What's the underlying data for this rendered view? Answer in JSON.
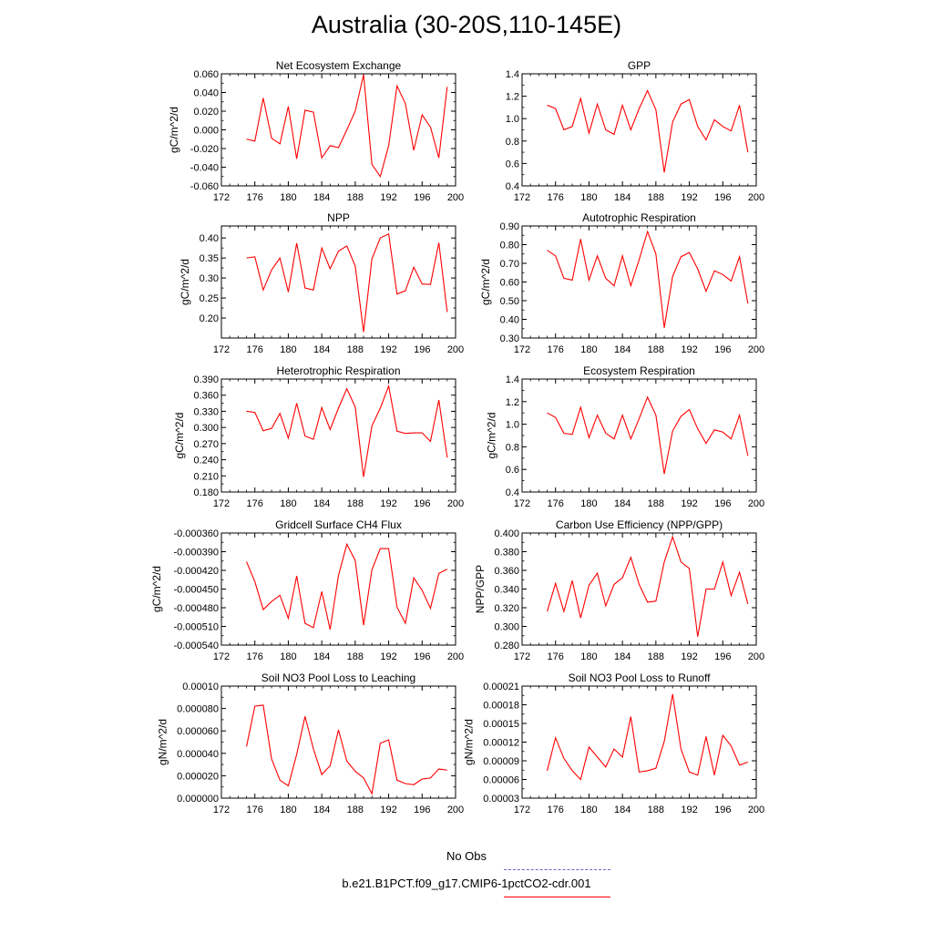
{
  "title": "Australia (30-20S,110-145E)",
  "colors": {
    "series": "#ff0000",
    "obs": "#6666cc",
    "axis": "#000000"
  },
  "legend": {
    "obs_label": "No Obs",
    "model_label": "b.e21.B1PCT.f09_g17.CMIP6-1pctCO2-cdr.001"
  },
  "chart_data": [
    {
      "type": "line",
      "title": "Net Ecosystem Exchange",
      "ylabel": "gC/m^2/d",
      "xlim": [
        172,
        200
      ],
      "ylim": [
        -0.06,
        0.06
      ],
      "xticks": [
        "172",
        "176",
        "180",
        "184",
        "188",
        "192",
        "196",
        "200"
      ],
      "yticks": [
        "-0.060",
        "-0.040",
        "-0.020",
        "0.000",
        "0.020",
        "0.040",
        "0.060"
      ],
      "x": [
        175,
        176,
        177,
        178,
        179,
        180,
        181,
        182,
        183,
        184,
        185,
        186,
        187,
        188,
        189,
        190,
        191,
        192,
        193,
        194,
        195,
        196,
        197,
        198,
        199
      ],
      "series": [
        {
          "values": [
            -0.01,
            -0.012,
            0.034,
            -0.009,
            -0.015,
            0.025,
            -0.031,
            0.021,
            0.019,
            -0.03,
            -0.017,
            -0.019,
            0.0,
            0.02,
            0.059,
            -0.037,
            -0.05,
            -0.017,
            0.047,
            0.028,
            -0.022,
            0.016,
            0.003,
            -0.03,
            0.046
          ]
        }
      ]
    },
    {
      "type": "line",
      "title": "GPP",
      "ylabel": "",
      "xlim": [
        172,
        200
      ],
      "ylim": [
        0.4,
        1.4
      ],
      "xticks": [
        "172",
        "176",
        "180",
        "184",
        "188",
        "192",
        "196",
        "200"
      ],
      "yticks": [
        "0.4",
        "0.6",
        "0.8",
        "1.0",
        "1.2",
        "1.4"
      ],
      "x": [
        175,
        176,
        177,
        178,
        179,
        180,
        181,
        182,
        183,
        184,
        185,
        186,
        187,
        188,
        189,
        190,
        191,
        192,
        193,
        194,
        195,
        196,
        197,
        198,
        199
      ],
      "series": [
        {
          "values": [
            1.12,
            1.09,
            0.9,
            0.93,
            1.18,
            0.87,
            1.13,
            0.9,
            0.86,
            1.12,
            0.9,
            1.09,
            1.25,
            1.08,
            0.52,
            0.97,
            1.13,
            1.17,
            0.93,
            0.81,
            0.99,
            0.93,
            0.89,
            1.12,
            0.7
          ]
        }
      ]
    },
    {
      "type": "line",
      "title": "NPP",
      "ylabel": "gC/m^2/d",
      "xlim": [
        172,
        200
      ],
      "ylim": [
        0.15,
        0.43
      ],
      "xticks": [
        "172",
        "176",
        "180",
        "184",
        "188",
        "192",
        "196",
        "200"
      ],
      "yticks": [
        "0.20",
        "0.25",
        "0.30",
        "0.35",
        "0.40"
      ],
      "x": [
        175,
        176,
        177,
        178,
        179,
        180,
        181,
        182,
        183,
        184,
        185,
        186,
        187,
        188,
        189,
        190,
        191,
        192,
        193,
        194,
        195,
        196,
        197,
        198,
        199
      ],
      "series": [
        {
          "values": [
            0.35,
            0.353,
            0.27,
            0.32,
            0.35,
            0.265,
            0.387,
            0.275,
            0.27,
            0.375,
            0.323,
            0.367,
            0.38,
            0.33,
            0.165,
            0.348,
            0.4,
            0.41,
            0.26,
            0.268,
            0.327,
            0.285,
            0.284,
            0.388,
            0.215
          ]
        }
      ]
    },
    {
      "type": "line",
      "title": "Autotrophic Respiration",
      "ylabel": "gC/m^2/d",
      "xlim": [
        172,
        200
      ],
      "ylim": [
        0.3,
        0.9
      ],
      "xticks": [
        "172",
        "176",
        "180",
        "184",
        "188",
        "192",
        "196",
        "200"
      ],
      "yticks": [
        "0.30",
        "0.40",
        "0.50",
        "0.60",
        "0.70",
        "0.80",
        "0.90"
      ],
      "x": [
        175,
        176,
        177,
        178,
        179,
        180,
        181,
        182,
        183,
        184,
        185,
        186,
        187,
        188,
        189,
        190,
        191,
        192,
        193,
        194,
        195,
        196,
        197,
        198,
        199
      ],
      "series": [
        {
          "values": [
            0.77,
            0.74,
            0.62,
            0.61,
            0.83,
            0.61,
            0.74,
            0.62,
            0.58,
            0.74,
            0.58,
            0.72,
            0.87,
            0.75,
            0.355,
            0.63,
            0.735,
            0.758,
            0.67,
            0.55,
            0.66,
            0.64,
            0.605,
            0.735,
            0.485
          ]
        }
      ]
    },
    {
      "type": "line",
      "title": "Heterotrophic Respiration",
      "ylabel": "gC/m^2/d",
      "xlim": [
        172,
        200
      ],
      "ylim": [
        0.18,
        0.39
      ],
      "xticks": [
        "172",
        "176",
        "180",
        "184",
        "188",
        "192",
        "196",
        "200"
      ],
      "yticks": [
        "0.180",
        "0.210",
        "0.240",
        "0.270",
        "0.300",
        "0.330",
        "0.360",
        "0.390"
      ],
      "x": [
        175,
        176,
        177,
        178,
        179,
        180,
        181,
        182,
        183,
        184,
        185,
        186,
        187,
        188,
        189,
        190,
        191,
        192,
        193,
        194,
        195,
        196,
        197,
        198,
        199
      ],
      "series": [
        {
          "values": [
            0.33,
            0.328,
            0.294,
            0.298,
            0.326,
            0.28,
            0.345,
            0.284,
            0.278,
            0.337,
            0.296,
            0.336,
            0.372,
            0.338,
            0.208,
            0.303,
            0.336,
            0.377,
            0.293,
            0.289,
            0.29,
            0.29,
            0.274,
            0.351,
            0.244
          ]
        }
      ]
    },
    {
      "type": "line",
      "title": "Ecosystem Respiration",
      "ylabel": "gC/m^2/d",
      "xlim": [
        172,
        200
      ],
      "ylim": [
        0.4,
        1.4
      ],
      "xticks": [
        "172",
        "176",
        "180",
        "184",
        "188",
        "192",
        "196",
        "200"
      ],
      "yticks": [
        "0.4",
        "0.6",
        "0.8",
        "1.0",
        "1.2",
        "1.4"
      ],
      "x": [
        175,
        176,
        177,
        178,
        179,
        180,
        181,
        182,
        183,
        184,
        185,
        186,
        187,
        188,
        189,
        190,
        191,
        192,
        193,
        194,
        195,
        196,
        197,
        198,
        199
      ],
      "series": [
        {
          "values": [
            1.1,
            1.06,
            0.92,
            0.91,
            1.15,
            0.88,
            1.08,
            0.92,
            0.87,
            1.08,
            0.87,
            1.05,
            1.24,
            1.08,
            0.56,
            0.94,
            1.07,
            1.13,
            0.96,
            0.83,
            0.95,
            0.93,
            0.87,
            1.08,
            0.72
          ]
        }
      ]
    },
    {
      "type": "line",
      "title": "Gridcell Surface CH4 Flux",
      "ylabel": "gC/m^2/d",
      "xlim": [
        172,
        200
      ],
      "ylim": [
        -0.00054,
        -0.00036
      ],
      "xticks": [
        "172",
        "176",
        "180",
        "184",
        "188",
        "192",
        "196",
        "200"
      ],
      "yticks": [
        "-0.000540",
        "-0.000510",
        "-0.000480",
        "-0.000450",
        "-0.000420",
        "-0.000390",
        "-0.000360"
      ],
      "x": [
        175,
        176,
        177,
        178,
        179,
        180,
        181,
        182,
        183,
        184,
        185,
        186,
        187,
        188,
        189,
        190,
        191,
        192,
        193,
        194,
        195,
        196,
        197,
        198,
        199
      ],
      "series": [
        {
          "values": [
            -0.000406,
            -0.000438,
            -0.000483,
            -0.00047,
            -0.00046,
            -0.000497,
            -0.000429,
            -0.000505,
            -0.000512,
            -0.000454,
            -0.000515,
            -0.000428,
            -0.000378,
            -0.000404,
            -0.000508,
            -0.000419,
            -0.000385,
            -0.000385,
            -0.000479,
            -0.000505,
            -0.000432,
            -0.000452,
            -0.000481,
            -0.000425,
            -0.000418
          ]
        }
      ]
    },
    {
      "type": "line",
      "title": "Carbon Use Efficiency (NPP/GPP)",
      "ylabel": "NPP/GPP",
      "xlim": [
        172,
        200
      ],
      "ylim": [
        0.28,
        0.4
      ],
      "xticks": [
        "172",
        "176",
        "180",
        "184",
        "188",
        "192",
        "196",
        "200"
      ],
      "yticks": [
        "0.280",
        "0.300",
        "0.320",
        "0.340",
        "0.360",
        "0.380",
        "0.400"
      ],
      "x": [
        175,
        176,
        177,
        178,
        179,
        180,
        181,
        182,
        183,
        184,
        185,
        186,
        187,
        188,
        189,
        190,
        191,
        192,
        193,
        194,
        195,
        196,
        197,
        198,
        199
      ],
      "series": [
        {
          "values": [
            0.316,
            0.346,
            0.316,
            0.349,
            0.309,
            0.344,
            0.357,
            0.322,
            0.345,
            0.352,
            0.374,
            0.345,
            0.326,
            0.327,
            0.369,
            0.396,
            0.369,
            0.362,
            0.289,
            0.34,
            0.34,
            0.369,
            0.333,
            0.358,
            0.324
          ]
        }
      ]
    },
    {
      "type": "line",
      "title": "Soil NO3 Pool Loss to Leaching",
      "ylabel": "gN/m^2/d",
      "xlim": [
        172,
        200
      ],
      "ylim": [
        0.0,
        0.0001
      ],
      "xticks": [
        "172",
        "176",
        "180",
        "184",
        "188",
        "192",
        "196",
        "200"
      ],
      "yticks": [
        "0.000000",
        "0.000020",
        "0.000040",
        "0.000060",
        "0.000080",
        "0.00010"
      ],
      "x": [
        175,
        176,
        177,
        178,
        179,
        180,
        181,
        182,
        183,
        184,
        185,
        186,
        187,
        188,
        189,
        190,
        191,
        192,
        193,
        194,
        195,
        196,
        197,
        198,
        199
      ],
      "series": [
        {
          "values": [
            4.6e-05,
            8.2e-05,
            8.3e-05,
            3.5e-05,
            1.6e-05,
            1.1e-05,
            3.9e-05,
            7.3e-05,
            4.4e-05,
            2.1e-05,
            2.9e-05,
            6.1e-05,
            3.3e-05,
            2.4e-05,
            1.8e-05,
            4e-06,
            4.9e-05,
            5.2e-05,
            1.6e-05,
            1.3e-05,
            1.2e-05,
            1.7e-05,
            1.8e-05,
            2.6e-05,
            2.5e-05
          ]
        }
      ]
    },
    {
      "type": "line",
      "title": "Soil NO3 Pool Loss to Runoff",
      "ylabel": "gN/m^2/d",
      "xlim": [
        172,
        200
      ],
      "ylim": [
        3e-05,
        0.00021
      ],
      "xticks": [
        "172",
        "176",
        "180",
        "184",
        "188",
        "192",
        "196",
        "200"
      ],
      "yticks": [
        "0.00003",
        "0.00006",
        "0.00009",
        "0.00012",
        "0.00015",
        "0.00018",
        "0.00021"
      ],
      "x": [
        175,
        176,
        177,
        178,
        179,
        180,
        181,
        182,
        183,
        184,
        185,
        186,
        187,
        188,
        189,
        190,
        191,
        192,
        193,
        194,
        195,
        196,
        197,
        198,
        199
      ],
      "series": [
        {
          "values": [
            7.4e-05,
            0.000127,
            9.4e-05,
            7.4e-05,
            6e-05,
            0.000112,
            9.6e-05,
            8e-05,
            0.000109,
            9.6e-05,
            0.000161,
            7.2e-05,
            7.4e-05,
            7.8e-05,
            0.000121,
            0.000197,
            0.000109,
            7.2e-05,
            6.7e-05,
            0.000129,
            6.7e-05,
            0.000131,
            0.000114,
            8.3e-05,
            8.8e-05
          ]
        }
      ]
    }
  ]
}
